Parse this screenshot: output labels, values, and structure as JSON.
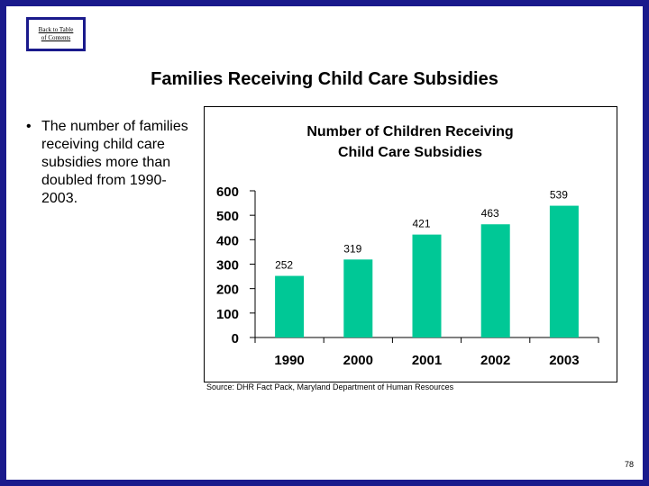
{
  "nav": {
    "back_line1": "Back to Table",
    "back_line2": "of Contents"
  },
  "slide_title": "Families Receiving Child Care Subsidies",
  "bullet": {
    "marker": "•",
    "text": "The number of families receiving child care subsidies more than doubled from 1990-2003."
  },
  "chart_data": {
    "type": "bar",
    "title_line1": "Number of Children Receiving",
    "title_line2": "Child Care Subsidies",
    "categories": [
      "1990",
      "2000",
      "2001",
      "2002",
      "2003"
    ],
    "values": [
      252,
      319,
      421,
      463,
      539
    ],
    "value_labels": [
      "252",
      "319",
      "421",
      "463",
      "539"
    ],
    "yticks": [
      0,
      100,
      200,
      300,
      400,
      500,
      600
    ],
    "ylim": [
      0,
      600
    ],
    "bar_color": "#00c896",
    "xlabel": "",
    "ylabel": ""
  },
  "source": "Source: DHR Fact Pack, Maryland Department of Human Resources",
  "page_number": "78"
}
